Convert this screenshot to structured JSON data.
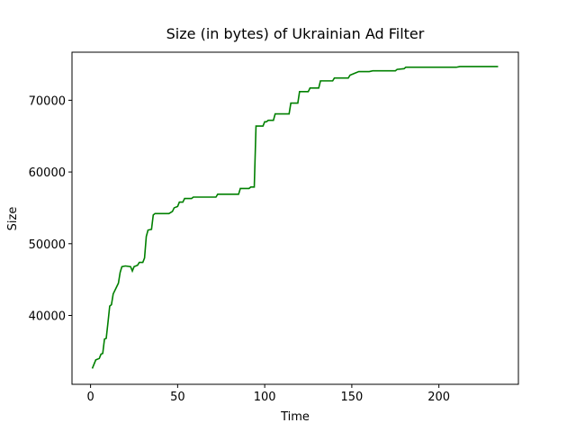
{
  "chart_data": {
    "type": "line",
    "title": "Size (in bytes) of Ukrainian Ad Filter",
    "x_label": "Time",
    "y_label": "Size",
    "x": [
      1,
      3,
      5,
      6,
      7,
      8,
      9,
      10,
      11,
      12,
      13,
      15,
      16,
      17,
      18,
      20,
      23,
      24,
      25,
      27,
      28,
      30,
      31,
      32,
      33,
      35,
      36,
      37,
      45,
      47,
      48,
      50,
      51,
      53,
      54,
      58,
      59,
      72,
      73,
      85,
      86,
      91,
      92,
      94,
      95,
      99,
      100,
      101,
      102,
      105,
      106,
      114,
      115,
      119,
      120,
      125,
      126,
      131,
      132,
      139,
      140,
      148,
      149,
      152,
      154,
      160,
      162,
      175,
      176,
      180,
      181,
      210,
      212,
      234
    ],
    "series": [
      {
        "name": "Size",
        "color": "#008000",
        "values": [
          32600,
          33800,
          34000,
          34600,
          34700,
          36700,
          36800,
          39000,
          41300,
          41500,
          43000,
          44000,
          44500,
          46000,
          46800,
          46900,
          46800,
          46200,
          46800,
          47000,
          47400,
          47400,
          48000,
          51000,
          51900,
          52000,
          54000,
          54200,
          54200,
          54500,
          55000,
          55200,
          55800,
          55800,
          56300,
          56300,
          56500,
          56500,
          56900,
          56900,
          57700,
          57700,
          57900,
          57900,
          66400,
          66400,
          67000,
          67000,
          67200,
          67200,
          68100,
          68100,
          69600,
          69600,
          71200,
          71200,
          71700,
          71700,
          72700,
          72700,
          73100,
          73100,
          73500,
          73800,
          74000,
          74000,
          74100,
          74100,
          74300,
          74400,
          74600,
          74600,
          74700,
          74700
        ]
      }
    ],
    "xlim": [
      -10.65,
      245.65
    ],
    "ylim": [
      30400,
      76700
    ],
    "xticks": [
      0,
      50,
      100,
      150,
      200
    ],
    "yticks": [
      40000,
      50000,
      60000,
      70000
    ]
  }
}
